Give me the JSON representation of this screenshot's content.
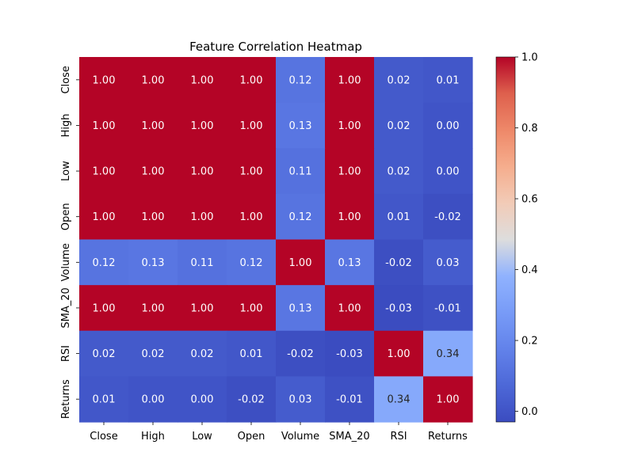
{
  "chart_data": {
    "type": "heatmap",
    "title": "Feature Correlation Heatmap",
    "xlabel": "",
    "ylabel": "",
    "labels": [
      "Close",
      "High",
      "Low",
      "Open",
      "Volume",
      "SMA_20",
      "RSI",
      "Returns"
    ],
    "values": [
      [
        1.0,
        1.0,
        1.0,
        1.0,
        0.12,
        1.0,
        0.02,
        0.01
      ],
      [
        1.0,
        1.0,
        1.0,
        1.0,
        0.13,
        1.0,
        0.02,
        -0.0
      ],
      [
        1.0,
        1.0,
        1.0,
        1.0,
        0.11,
        1.0,
        0.02,
        -0.0
      ],
      [
        1.0,
        1.0,
        1.0,
        1.0,
        0.12,
        1.0,
        0.01,
        -0.02
      ],
      [
        0.12,
        0.13,
        0.11,
        0.12,
        1.0,
        0.13,
        -0.02,
        0.03
      ],
      [
        1.0,
        1.0,
        1.0,
        1.0,
        0.13,
        1.0,
        -0.03,
        -0.01
      ],
      [
        0.02,
        0.02,
        0.02,
        0.01,
        -0.02,
        -0.03,
        1.0,
        0.34
      ],
      [
        0.01,
        -0.0,
        -0.0,
        -0.02,
        0.03,
        -0.01,
        0.34,
        1.0
      ]
    ],
    "value_format": "0.00",
    "colormap": "coolwarm",
    "vmin": -0.03,
    "vmax": 1.0,
    "colorbar_ticks": [
      0.0,
      0.2,
      0.4,
      0.6,
      0.8,
      1.0
    ],
    "colorbar_tick_labels": [
      "0.0",
      "0.2",
      "0.4",
      "0.6",
      "0.8",
      "1.0"
    ]
  }
}
